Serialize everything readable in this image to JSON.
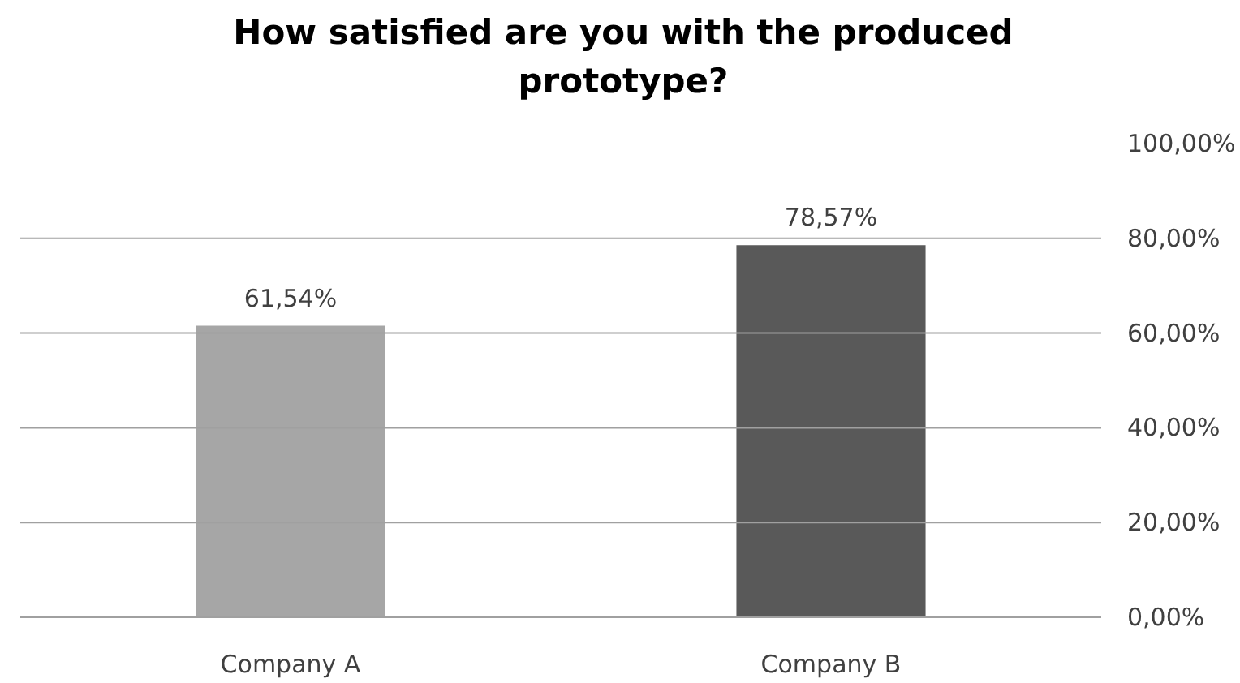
{
  "chart_data": {
    "type": "bar",
    "title": "How satisfied are you with the produced prototype?",
    "categories": [
      "Company A",
      "Company B"
    ],
    "values": [
      61.54,
      78.57
    ],
    "colors": [
      "#a6a6a6",
      "#595959"
    ],
    "value_labels": [
      "61,54%",
      "78,57%"
    ],
    "ylim": [
      0,
      100
    ],
    "yticks": [
      {
        "value": 0,
        "label": "0,00%"
      },
      {
        "value": 20,
        "label": "20,00%"
      },
      {
        "value": 40,
        "label": "40,00%"
      },
      {
        "value": 60,
        "label": "60,00%"
      },
      {
        "value": 80,
        "label": "80,00%"
      },
      {
        "value": 100,
        "label": "100,00%"
      }
    ],
    "grid": "y"
  }
}
